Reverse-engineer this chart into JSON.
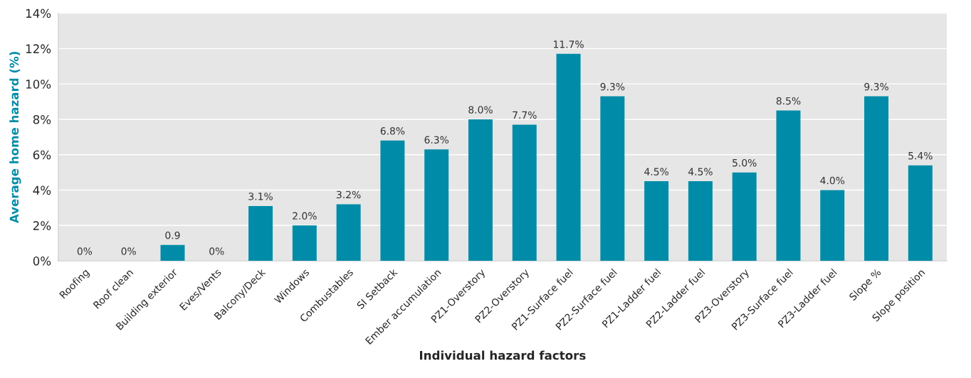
{
  "chart_data": {
    "type": "bar",
    "xlabel": "Individual hazard factors",
    "ylabel": "Average home hazard (%)",
    "categories": [
      "Roofing",
      "Roof clean",
      "Building exterior",
      "Eves/Vents",
      "Balcony/Deck",
      "Windows",
      "Combustables",
      "SI Setback",
      "Ember accumulation",
      "PZ1-Overstory",
      "PZ2-Overstory",
      "PZ1-Surface fuel",
      "PZ2-Surface fuel",
      "PZ1-Ladder fuel",
      "PZ2-Ladder fuel",
      "PZ3-Overstory",
      "PZ3-Surface fuel",
      "PZ3-Ladder fuel",
      "Slope %",
      "Slope position"
    ],
    "values": [
      0,
      0,
      0.9,
      0,
      3.1,
      2.0,
      3.2,
      6.8,
      6.3,
      8.0,
      7.7,
      11.7,
      9.3,
      4.5,
      4.5,
      5.0,
      8.5,
      4.0,
      9.3,
      5.4
    ],
    "value_labels": [
      "0%",
      "0%",
      "0.9",
      "0%",
      "3.1%",
      "2.0%",
      "3.2%",
      "6.8%",
      "6.3%",
      "8.0%",
      "7.7%",
      "11.7%",
      "9.3%",
      "4.5%",
      "4.5%",
      "5.0%",
      "8.5%",
      "4.0%",
      "9.3%",
      "5.4%"
    ],
    "color": "#008ca8",
    "ylim": [
      0,
      14
    ],
    "yticks": [
      {
        "value": 0,
        "label": "0%"
      },
      {
        "value": 2,
        "label": "2%"
      },
      {
        "value": 4,
        "label": "4%"
      },
      {
        "value": 6,
        "label": "6%"
      },
      {
        "value": 8,
        "label": "8%"
      },
      {
        "value": 10,
        "label": "10%"
      },
      {
        "value": 12,
        "label": "12%"
      },
      {
        "value": 14,
        "label": "14%"
      }
    ],
    "grid": "y"
  }
}
